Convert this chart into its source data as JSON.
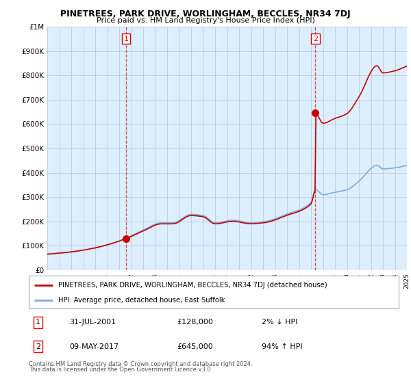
{
  "title": "PINETREES, PARK DRIVE, WORLINGHAM, BECCLES, NR34 7DJ",
  "subtitle": "Price paid vs. HM Land Registry's House Price Index (HPI)",
  "legend_line1": "PINETREES, PARK DRIVE, WORLINGHAM, BECCLES, NR34 7DJ (detached house)",
  "legend_line2": "HPI: Average price, detached house, East Suffolk",
  "footnote1": "Contains HM Land Registry data © Crown copyright and database right 2024.",
  "footnote2": "This data is licensed under the Open Government Licence v3.0.",
  "annotation1_label": "1",
  "annotation1_date": "31-JUL-2001",
  "annotation1_price": "£128,000",
  "annotation1_hpi": "2% ↓ HPI",
  "annotation2_label": "2",
  "annotation2_date": "09-MAY-2017",
  "annotation2_price": "£645,000",
  "annotation2_hpi": "94% ↑ HPI",
  "sale_color": "#cc0000",
  "hpi_color": "#7aaddc",
  "dashed_color": "#cc0000",
  "ylim_min": 0,
  "ylim_max": 1000000,
  "yticks": [
    0,
    100000,
    200000,
    300000,
    400000,
    500000,
    600000,
    700000,
    800000,
    900000,
    1000000
  ],
  "ytick_labels": [
    "£0",
    "£100K",
    "£200K",
    "£300K",
    "£400K",
    "£500K",
    "£600K",
    "£700K",
    "£800K",
    "£900K",
    "£1M"
  ],
  "sale1_x": 2001.58,
  "sale1_y": 128000,
  "sale2_x": 2017.36,
  "sale2_y": 645000,
  "background_color": "#ffffff",
  "chart_bg_color": "#ddeeff",
  "grid_color": "#aabbcc",
  "xlim_min": 1995,
  "xlim_max": 2025
}
